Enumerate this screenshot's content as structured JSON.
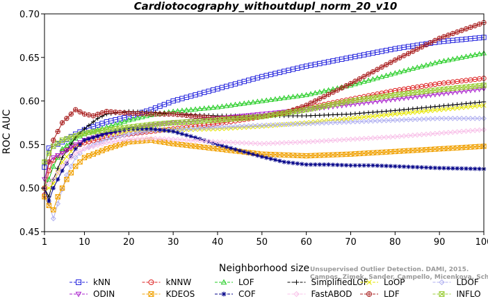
{
  "chart_data": {
    "type": "line",
    "title": "Cardiotocography_withoutdupl_norm_20_v10",
    "xlabel": "Neighborhood size",
    "ylabel": "ROC AUC",
    "xlim": [
      1,
      100
    ],
    "ylim": [
      0.45,
      0.7
    ],
    "x_ticks": [
      "1",
      "10",
      "20",
      "30",
      "40",
      "50",
      "60",
      "70",
      "80",
      "90",
      "100"
    ],
    "y_ticks": [
      "0.45",
      "0.50",
      "0.55",
      "0.60",
      "0.65",
      "0.70"
    ],
    "grid": false,
    "legend_position": "bottom",
    "credit_lines": [
      "Unsupervised Outlier Detection. DAMI, 2015.",
      "Campos, Zimek, Sander, Campello, Micenkova, Schubert, Assent, Houle"
    ],
    "series": [
      {
        "name": "kNN",
        "color": "#2222dd",
        "marker": "square",
        "points": [
          [
            1,
            0.524
          ],
          [
            2,
            0.546
          ],
          [
            3,
            0.548
          ],
          [
            5,
            0.553
          ],
          [
            8,
            0.562
          ],
          [
            10,
            0.567
          ],
          [
            15,
            0.576
          ],
          [
            20,
            0.582
          ],
          [
            25,
            0.59
          ],
          [
            30,
            0.6
          ],
          [
            40,
            0.614
          ],
          [
            50,
            0.628
          ],
          [
            60,
            0.64
          ],
          [
            70,
            0.65
          ],
          [
            80,
            0.66
          ],
          [
            90,
            0.668
          ],
          [
            100,
            0.673
          ]
        ]
      },
      {
        "name": "kNNW",
        "color": "#dd2222",
        "marker": "circle",
        "points": [
          [
            1,
            0.492
          ],
          [
            2,
            0.52
          ],
          [
            3,
            0.532
          ],
          [
            5,
            0.542
          ],
          [
            8,
            0.548
          ],
          [
            10,
            0.552
          ],
          [
            15,
            0.558
          ],
          [
            20,
            0.562
          ],
          [
            25,
            0.565
          ],
          [
            30,
            0.568
          ],
          [
            40,
            0.574
          ],
          [
            50,
            0.582
          ],
          [
            60,
            0.592
          ],
          [
            70,
            0.602
          ],
          [
            80,
            0.612
          ],
          [
            90,
            0.62
          ],
          [
            100,
            0.626
          ]
        ]
      },
      {
        "name": "LOF",
        "color": "#22cc22",
        "marker": "triangle-up",
        "points": [
          [
            1,
            0.5
          ],
          [
            2,
            0.51
          ],
          [
            3,
            0.525
          ],
          [
            5,
            0.545
          ],
          [
            8,
            0.557
          ],
          [
            10,
            0.562
          ],
          [
            15,
            0.57
          ],
          [
            20,
            0.578
          ],
          [
            25,
            0.584
          ],
          [
            30,
            0.588
          ],
          [
            40,
            0.593
          ],
          [
            50,
            0.6
          ],
          [
            60,
            0.607
          ],
          [
            70,
            0.618
          ],
          [
            80,
            0.632
          ],
          [
            90,
            0.645
          ],
          [
            100,
            0.655
          ]
        ]
      },
      {
        "name": "SimplifiedLOF",
        "color": "#000000",
        "marker": "plus",
        "points": [
          [
            1,
            0.5
          ],
          [
            2,
            0.49
          ],
          [
            3,
            0.51
          ],
          [
            5,
            0.535
          ],
          [
            8,
            0.558
          ],
          [
            10,
            0.568
          ],
          [
            13,
            0.58
          ],
          [
            15,
            0.585
          ],
          [
            20,
            0.588
          ],
          [
            25,
            0.587
          ],
          [
            30,
            0.585
          ],
          [
            40,
            0.583
          ],
          [
            50,
            0.583
          ],
          [
            60,
            0.583
          ],
          [
            70,
            0.585
          ],
          [
            80,
            0.589
          ],
          [
            90,
            0.594
          ],
          [
            100,
            0.599
          ]
        ]
      },
      {
        "name": "LoOP",
        "color": "#e6e600",
        "marker": "x",
        "points": [
          [
            1,
            0.5
          ],
          [
            2,
            0.5
          ],
          [
            3,
            0.505
          ],
          [
            5,
            0.53
          ],
          [
            8,
            0.548
          ],
          [
            10,
            0.555
          ],
          [
            15,
            0.562
          ],
          [
            20,
            0.565
          ],
          [
            25,
            0.567
          ],
          [
            30,
            0.567
          ],
          [
            40,
            0.568
          ],
          [
            50,
            0.571
          ],
          [
            60,
            0.575
          ],
          [
            70,
            0.58
          ],
          [
            80,
            0.585
          ],
          [
            90,
            0.59
          ],
          [
            100,
            0.595
          ]
        ]
      },
      {
        "name": "LDOF",
        "color": "#b0b0f0",
        "marker": "diamond",
        "points": [
          [
            1,
            0.5
          ],
          [
            2,
            0.482
          ],
          [
            3,
            0.465
          ],
          [
            4,
            0.482
          ],
          [
            6,
            0.515
          ],
          [
            8,
            0.535
          ],
          [
            10,
            0.545
          ],
          [
            15,
            0.556
          ],
          [
            20,
            0.562
          ],
          [
            25,
            0.566
          ],
          [
            30,
            0.567
          ],
          [
            40,
            0.57
          ],
          [
            50,
            0.572
          ],
          [
            60,
            0.574
          ],
          [
            70,
            0.576
          ],
          [
            80,
            0.578
          ],
          [
            90,
            0.58
          ],
          [
            100,
            0.58
          ]
        ]
      },
      {
        "name": "ODIN",
        "color": "#aa22cc",
        "marker": "triangle-down",
        "points": [
          [
            1,
            0.51
          ],
          [
            2,
            0.53
          ],
          [
            3,
            0.535
          ],
          [
            5,
            0.54
          ],
          [
            8,
            0.55
          ],
          [
            10,
            0.555
          ],
          [
            15,
            0.562
          ],
          [
            20,
            0.568
          ],
          [
            25,
            0.572
          ],
          [
            30,
            0.575
          ],
          [
            40,
            0.58
          ],
          [
            50,
            0.585
          ],
          [
            60,
            0.59
          ],
          [
            70,
            0.596
          ],
          [
            80,
            0.602
          ],
          [
            90,
            0.608
          ],
          [
            100,
            0.614
          ]
        ]
      },
      {
        "name": "KDEOS",
        "color": "#f0a000",
        "marker": "square-x",
        "points": [
          [
            1,
            0.49
          ],
          [
            2,
            0.48
          ],
          [
            3,
            0.475
          ],
          [
            4,
            0.49
          ],
          [
            6,
            0.51
          ],
          [
            8,
            0.525
          ],
          [
            10,
            0.535
          ],
          [
            15,
            0.545
          ],
          [
            20,
            0.553
          ],
          [
            25,
            0.555
          ],
          [
            30,
            0.551
          ],
          [
            40,
            0.545
          ],
          [
            50,
            0.539
          ],
          [
            60,
            0.537
          ],
          [
            70,
            0.539
          ],
          [
            80,
            0.542
          ],
          [
            90,
            0.545
          ],
          [
            100,
            0.548
          ]
        ]
      },
      {
        "name": "COF",
        "color": "#000088",
        "marker": "star",
        "points": [
          [
            1,
            0.5
          ],
          [
            2,
            0.485
          ],
          [
            3,
            0.5
          ],
          [
            5,
            0.52
          ],
          [
            8,
            0.545
          ],
          [
            10,
            0.555
          ],
          [
            15,
            0.563
          ],
          [
            20,
            0.568
          ],
          [
            25,
            0.568
          ],
          [
            30,
            0.565
          ],
          [
            35,
            0.558
          ],
          [
            40,
            0.55
          ],
          [
            45,
            0.543
          ],
          [
            50,
            0.536
          ],
          [
            55,
            0.53
          ],
          [
            60,
            0.527
          ],
          [
            65,
            0.527
          ],
          [
            70,
            0.526
          ],
          [
            75,
            0.526
          ],
          [
            80,
            0.525
          ],
          [
            85,
            0.524
          ],
          [
            90,
            0.523
          ],
          [
            100,
            0.522
          ]
        ]
      },
      {
        "name": "FastABOD",
        "color": "#f8c0e8",
        "marker": "diamond",
        "points": [
          [
            1,
            0.5
          ],
          [
            3,
            0.51
          ],
          [
            5,
            0.525
          ],
          [
            8,
            0.54
          ],
          [
            10,
            0.545
          ],
          [
            15,
            0.552
          ],
          [
            20,
            0.556
          ],
          [
            25,
            0.557
          ],
          [
            30,
            0.556
          ],
          [
            40,
            0.553
          ],
          [
            50,
            0.551
          ],
          [
            60,
            0.553
          ],
          [
            70,
            0.556
          ],
          [
            80,
            0.559
          ],
          [
            90,
            0.563
          ],
          [
            100,
            0.567
          ]
        ]
      },
      {
        "name": "LDF",
        "color": "#aa2222",
        "marker": "circle-plus",
        "points": [
          [
            1,
            0.5
          ],
          [
            2,
            0.53
          ],
          [
            3,
            0.555
          ],
          [
            4,
            0.565
          ],
          [
            5,
            0.575
          ],
          [
            6,
            0.58
          ],
          [
            7,
            0.585
          ],
          [
            8,
            0.59
          ],
          [
            10,
            0.585
          ],
          [
            12,
            0.583
          ],
          [
            15,
            0.588
          ],
          [
            20,
            0.586
          ],
          [
            25,
            0.585
          ],
          [
            30,
            0.585
          ],
          [
            40,
            0.58
          ],
          [
            50,
            0.582
          ],
          [
            55,
            0.586
          ],
          [
            60,
            0.595
          ],
          [
            70,
            0.62
          ],
          [
            80,
            0.647
          ],
          [
            90,
            0.672
          ],
          [
            100,
            0.69
          ]
        ]
      },
      {
        "name": "INFLO",
        "color": "#99cc33",
        "marker": "square-x",
        "points": [
          [
            1,
            0.53
          ],
          [
            2,
            0.54
          ],
          [
            3,
            0.548
          ],
          [
            5,
            0.555
          ],
          [
            8,
            0.56
          ],
          [
            10,
            0.563
          ],
          [
            15,
            0.567
          ],
          [
            20,
            0.57
          ],
          [
            25,
            0.573
          ],
          [
            30,
            0.575
          ],
          [
            40,
            0.578
          ],
          [
            50,
            0.582
          ],
          [
            60,
            0.59
          ],
          [
            70,
            0.6
          ],
          [
            80,
            0.607
          ],
          [
            90,
            0.613
          ],
          [
            100,
            0.618
          ]
        ]
      }
    ]
  }
}
